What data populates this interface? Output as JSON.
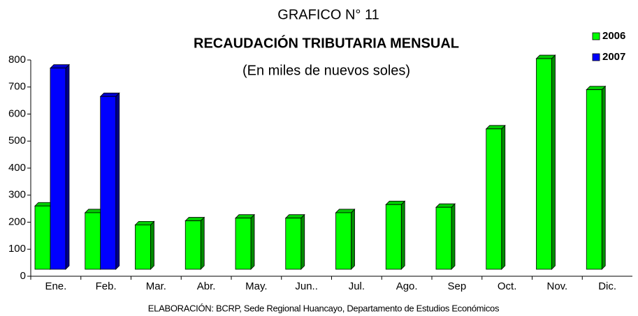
{
  "chart_data": {
    "type": "bar3d",
    "title": "GRAFICO N° 11",
    "subtitle": "RECAUDACIÓN TRIBUTARIA MENSUAL",
    "unit_note": "(En miles de nuevos soles)",
    "source": "ELABORACIÓN: BCRP, Sede Regional Huancayo, Departamento de Estudios Económicos",
    "categories": [
      "Ene.",
      "Feb.",
      "Mar.",
      "Abr.",
      "May.",
      "Jun..",
      "Jul.",
      "Ago.",
      "Sep",
      "Oct.",
      "Nov.",
      "Dic."
    ],
    "series": [
      {
        "name": "2006",
        "color": "#00ff00",
        "values": [
          260,
          235,
          190,
          205,
          215,
          215,
          235,
          265,
          255,
          545,
          805,
          690
        ]
      },
      {
        "name": "2007",
        "color": "#0000ff",
        "values": [
          770,
          665,
          null,
          null,
          null,
          null,
          null,
          null,
          null,
          null,
          null,
          null
        ]
      }
    ],
    "ylim": [
      0,
      800
    ],
    "yticks": [
      0,
      100,
      200,
      300,
      400,
      500,
      600,
      700,
      800
    ],
    "grid": false,
    "legend": "top-right"
  }
}
